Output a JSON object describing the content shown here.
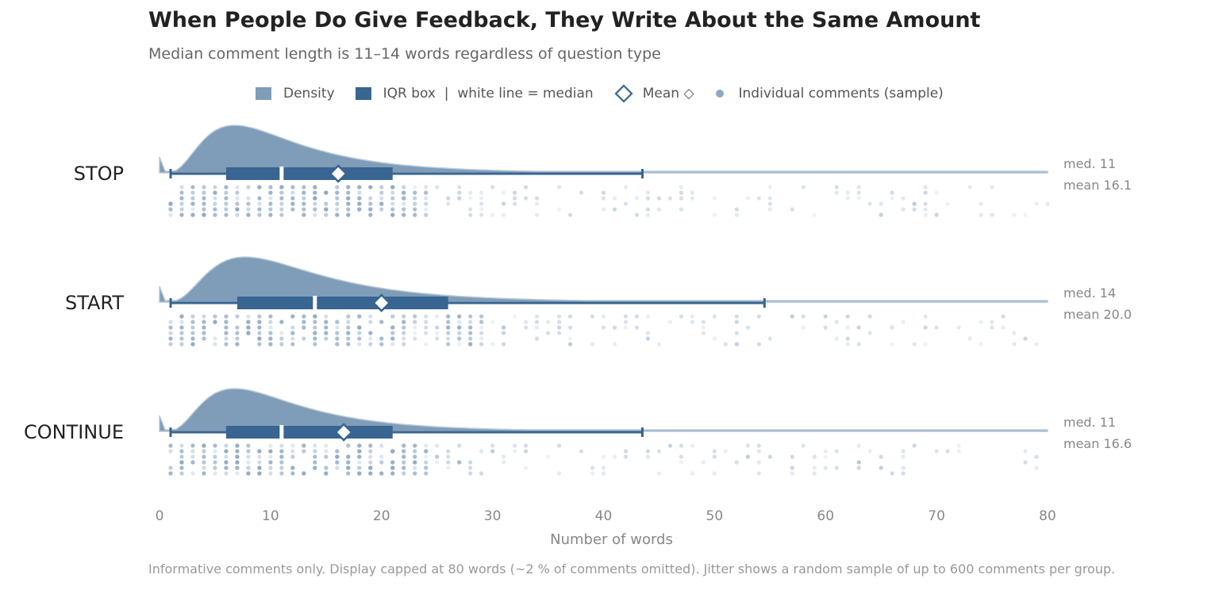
{
  "chart_data": {
    "type": "raincloud",
    "title": "When People Do Give Feedback, They Write About the Same Amount",
    "subtitle": "Median comment length is 11–14 words regardless of question type",
    "xlabel": "Number of words",
    "xlim": [
      0,
      80
    ],
    "xticks": [
      "0",
      "10",
      "20",
      "30",
      "40",
      "50",
      "60",
      "70",
      "80"
    ],
    "xtick_values": [
      0,
      10,
      20,
      30,
      40,
      50,
      60,
      70,
      80
    ],
    "grid": false,
    "legend": {
      "placement": "top-center",
      "entries": [
        {
          "label": "Density",
          "kind": "density"
        },
        {
          "label": "IQR box  |  white line = median",
          "kind": "box"
        },
        {
          "label": "Mean ◇",
          "kind": "mean"
        },
        {
          "label": "Individual comments (sample)",
          "kind": "point"
        }
      ]
    },
    "colors": {
      "density": "#7f9db8",
      "box": "#386591",
      "point": "#8fa9c4",
      "mean_fill": "#ffffff"
    },
    "series": [
      {
        "name": "STOP",
        "q1": 6,
        "median": 11,
        "q3": 21,
        "mean": 16.1,
        "whisker_low": 1,
        "whisker_high": 43.5,
        "density_peak": 7,
        "density_scale": 1.0,
        "median_label": "med. 11",
        "mean_label": "mean 16.1",
        "seed": 11
      },
      {
        "name": "START",
        "q1": 7,
        "median": 14,
        "q3": 26,
        "mean": 20.0,
        "whisker_low": 1,
        "whisker_high": 54.5,
        "density_peak": 8,
        "density_scale": 0.95,
        "median_label": "med. 14",
        "mean_label": "mean 20.0",
        "seed": 23
      },
      {
        "name": "CONTINUE",
        "q1": 6,
        "median": 11,
        "q3": 21,
        "mean": 16.6,
        "whisker_low": 1,
        "whisker_high": 43.5,
        "density_peak": 7,
        "density_scale": 0.9,
        "median_label": "med. 11",
        "mean_label": "mean 16.6",
        "seed": 37
      }
    ],
    "footnote": "Informative comments only. Display capped at 80 words (~2 % of comments omitted). Jitter shows a random sample of up to 600 comments per group."
  }
}
